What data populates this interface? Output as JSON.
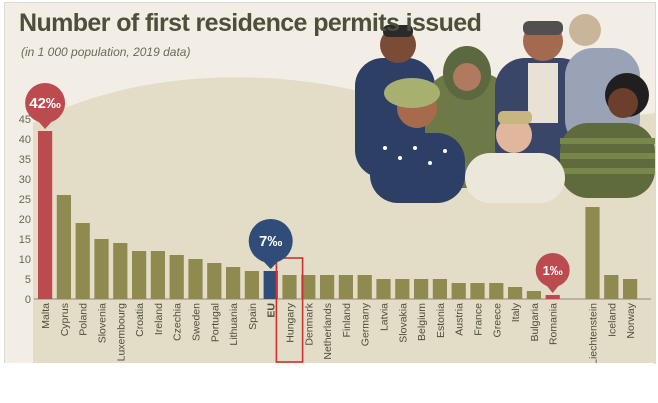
{
  "chart_data": {
    "type": "bar",
    "title": "Number of first residence permits issued",
    "subtitle": "(in 1 000 population, 2019 data)",
    "ylim": [
      0,
      45
    ],
    "yticks": [
      0,
      5,
      10,
      15,
      20,
      25,
      30,
      35,
      40,
      45
    ],
    "grid": false,
    "categories": [
      "Malta",
      "Cyprus",
      "Poland",
      "Slovenia",
      "Luxembourg",
      "Croatia",
      "Ireland",
      "Czechia",
      "Sweden",
      "Portugal",
      "Lithuania",
      "Spain",
      "EU",
      "Hungary",
      "Denmark",
      "Netherlands",
      "Finland",
      "Germany",
      "Latvia",
      "Slovakia",
      "Belgium",
      "Estonia",
      "Austria",
      "France",
      "Greece",
      "Italy",
      "Bulgaria",
      "Romania",
      "Liechtenstein",
      "Iceland",
      "Norway"
    ],
    "values": [
      42,
      26,
      19,
      15,
      14,
      12,
      12,
      11,
      10,
      9,
      8,
      7,
      7,
      6,
      6,
      6,
      6,
      6,
      5,
      5,
      5,
      5,
      4,
      4,
      4,
      3,
      2,
      1,
      23,
      6,
      5
    ],
    "highlights": [
      {
        "category": "Malta",
        "label": "42‰"
      },
      {
        "category": "EU",
        "label": "7‰"
      },
      {
        "category": "Romania",
        "label": "1‰"
      }
    ],
    "boxed_category": "Hungary"
  },
  "colors": {
    "bar": "#8f8a50",
    "malta": "#bb4b4f",
    "eu": "#2f4d78",
    "romania": "#bb4b4f",
    "box": "#d03030",
    "text": "#4d4f3a"
  }
}
